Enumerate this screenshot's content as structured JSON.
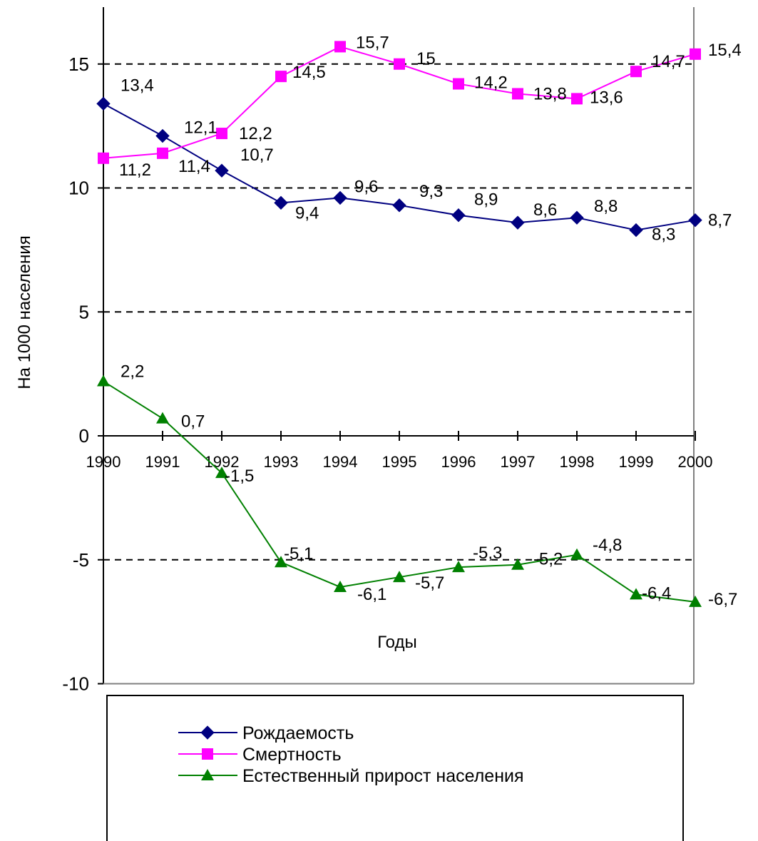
{
  "chart_data": {
    "type": "line",
    "title": "",
    "xlabel": "Годы",
    "ylabel": "На 1000 населения",
    "ylim": [
      -10,
      17
    ],
    "yticks": [
      -10,
      -5,
      0,
      5,
      10,
      15
    ],
    "ytick_labels": [
      "-10",
      "-5",
      "0",
      "5",
      "10",
      "15"
    ],
    "grid": "dashed horizontal at 15, 10, 5, -5",
    "legend_position": "bottom",
    "categories": [
      "1990",
      "1991",
      "1992",
      "1993",
      "1994",
      "1995",
      "1996",
      "1997",
      "1998",
      "1999",
      "2000"
    ],
    "series": [
      {
        "name": "Рождаемость",
        "color": "#000080",
        "marker": "diamond",
        "values": [
          13.4,
          12.1,
          10.7,
          9.4,
          9.6,
          9.3,
          8.9,
          8.6,
          8.8,
          8.3,
          8.7
        ],
        "labels": [
          "13,4",
          "12,1",
          "10,7",
          "9,4",
          "9,6",
          "9,3",
          "8,9",
          "8,6",
          "8,8",
          "8,3",
          "8,7"
        ]
      },
      {
        "name": "Смертность",
        "color": "#FF00FF",
        "marker": "square",
        "values": [
          11.2,
          11.4,
          12.2,
          14.5,
          15.7,
          15.0,
          14.2,
          13.8,
          13.6,
          14.7,
          15.4
        ],
        "labels": [
          "11,2",
          "11,4",
          "12,2",
          "14,5",
          "15,7",
          "15",
          "14,2",
          "13,8",
          "13,6",
          "14,7",
          "15,4"
        ]
      },
      {
        "name": "Естественный прирост населения",
        "color": "#008000",
        "marker": "triangle",
        "values": [
          2.2,
          0.7,
          -1.5,
          -5.1,
          -6.1,
          -5.7,
          -5.3,
          -5.2,
          -4.8,
          -6.4,
          -6.7
        ],
        "labels": [
          "2,2",
          "0,7",
          "-1,5",
          "-5,1",
          "-6,1",
          "-5,7",
          "-5,3",
          "-5,2",
          "-4,8",
          "-6,4",
          "-6,7"
        ]
      }
    ]
  }
}
